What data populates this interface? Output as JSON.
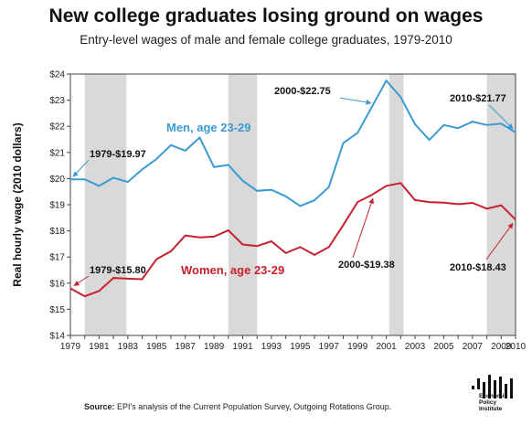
{
  "title": "New college graduates losing ground on wages",
  "subtitle": "Entry-level wages of male and female college graduates, 1979-2010",
  "source_label": "Source:",
  "source_text": "EPI's analysis of the Current Population Survey, Outgoing Rotations Group.",
  "logo_text": [
    "Economic",
    "Policy",
    "Institute"
  ],
  "colors": {
    "men": "#3a9ad1",
    "women": "#c8202e",
    "recession": "#d9d9d9"
  },
  "chart_data": {
    "type": "line",
    "ylabel": "Real hourly wage (2010 dollars)",
    "xlim": [
      1979,
      2010
    ],
    "ylim": [
      14,
      24
    ],
    "yticks": [
      "$14",
      "$15",
      "$16",
      "$17",
      "$18",
      "$19",
      "$20",
      "$21",
      "$22",
      "$23",
      "$24"
    ],
    "xticks": [
      "1979",
      "1981",
      "1983",
      "1985",
      "1987",
      "1989",
      "1991",
      "1993",
      "1995",
      "1997",
      "1999",
      "2001",
      "2003",
      "2005",
      "2007",
      "2009",
      "2010"
    ],
    "recessions": [
      [
        1980,
        1982.9
      ],
      [
        1990,
        1992
      ],
      [
        2001.2,
        2002.2
      ],
      [
        2008,
        2010
      ]
    ],
    "x": [
      1979,
      1980,
      1981,
      1982,
      1983,
      1984,
      1985,
      1986,
      1987,
      1988,
      1989,
      1990,
      1991,
      1992,
      1993,
      1994,
      1995,
      1996,
      1997,
      1998,
      1999,
      2000,
      2001,
      2002,
      2003,
      2004,
      2005,
      2006,
      2007,
      2008,
      2009,
      2010
    ],
    "series": [
      {
        "name": "Men, age 23-29",
        "values": [
          19.97,
          19.97,
          19.72,
          20.03,
          19.87,
          20.35,
          20.75,
          21.28,
          21.07,
          21.57,
          20.44,
          20.52,
          19.92,
          19.53,
          19.57,
          19.32,
          18.95,
          19.17,
          19.68,
          21.36,
          21.75,
          22.75,
          23.75,
          23.12,
          22.08,
          21.48,
          22.05,
          21.93,
          22.18,
          22.05,
          22.1,
          21.77
        ]
      },
      {
        "name": "Women, age 23-29",
        "values": [
          15.8,
          15.5,
          15.7,
          16.2,
          16.17,
          16.15,
          16.92,
          17.22,
          17.82,
          17.75,
          17.78,
          18.02,
          17.48,
          17.42,
          17.6,
          17.15,
          17.38,
          17.08,
          17.38,
          18.22,
          19.1,
          19.38,
          19.72,
          19.83,
          19.18,
          19.1,
          19.08,
          19.02,
          19.07,
          18.85,
          18.98,
          18.43
        ]
      }
    ],
    "annotations": [
      {
        "id": "men-1979",
        "text": "1979-$19.97"
      },
      {
        "id": "men-2000",
        "text": "2000-$22.75"
      },
      {
        "id": "men-2010",
        "text": "2010-$21.77"
      },
      {
        "id": "women-1979",
        "text": "1979-$15.80"
      },
      {
        "id": "women-2000",
        "text": "2000-$19.38"
      },
      {
        "id": "women-2010",
        "text": "2010-$18.43"
      }
    ]
  }
}
